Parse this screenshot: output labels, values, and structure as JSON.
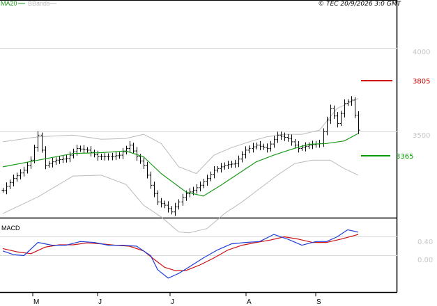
{
  "legend": {
    "ma_label": "MA20",
    "bb_label": "BBands",
    "ma_color": "#1a9a1a",
    "bb_color": "#bbbbbb"
  },
  "copyright": "© TEC 20/9/2026 3:0 GMT",
  "price_axis": {
    "ticks": [
      "4000",
      "3500"
    ]
  },
  "macd_axis": {
    "ticks": [
      "0.40",
      "0.00"
    ]
  },
  "resistance": {
    "label": "3805",
    "value": 3805,
    "color": "#cc0000"
  },
  "support": {
    "label": "3365",
    "value": 3365,
    "color": "#009900"
  },
  "months": [
    "M",
    "J",
    "J",
    "A",
    "S"
  ],
  "macd_panel": {
    "title": "MACD",
    "macd_color": "#1f3fd6",
    "signal_color": "#cc1111"
  },
  "chart_data": [
    {
      "type": "ohlc",
      "y_ticks": [
        3500,
        4000
      ],
      "ylim": [
        2890,
        4330
      ],
      "x_index_range": [
        0,
        101
      ],
      "month_start_index": {
        "M": 10,
        "J1": 28,
        "J2": 49,
        "A": 71,
        "S": 91
      },
      "series": [
        {
          "name": "MA20",
          "index": [
            0,
            10,
            20,
            28,
            35,
            40,
            45,
            52,
            57,
            62,
            67,
            72,
            77,
            82,
            87,
            92,
            97,
            101
          ],
          "values": [
            3290,
            3330,
            3370,
            3375,
            3385,
            3350,
            3250,
            3140,
            3115,
            3180,
            3250,
            3320,
            3360,
            3395,
            3425,
            3430,
            3445,
            3490
          ]
        },
        {
          "name": "BBands upper",
          "index": [
            0,
            10,
            20,
            28,
            35,
            40,
            45,
            50,
            55,
            60,
            65,
            70,
            75,
            80,
            85,
            90,
            95,
            101
          ],
          "values": [
            3440,
            3470,
            3480,
            3455,
            3460,
            3485,
            3430,
            3290,
            3250,
            3360,
            3405,
            3440,
            3470,
            3485,
            3485,
            3510,
            3640,
            3700
          ]
        },
        {
          "name": "BBands lower",
          "index": [
            0,
            10,
            20,
            28,
            35,
            40,
            45,
            50,
            53,
            58,
            63,
            68,
            73,
            78,
            83,
            88,
            93,
            97,
            101
          ],
          "values": [
            3010,
            3110,
            3235,
            3240,
            3185,
            3060,
            2990,
            2900,
            2895,
            2920,
            3010,
            3080,
            3160,
            3240,
            3310,
            3330,
            3330,
            3280,
            3240
          ]
        },
        {
          "name": "Close",
          "index": [
            0,
            3,
            6,
            8,
            10,
            12,
            15,
            18,
            21,
            24,
            27,
            30,
            33,
            36,
            38,
            40,
            42,
            44,
            46,
            48,
            50,
            52,
            54,
            56,
            58,
            60,
            63,
            66,
            69,
            72,
            75,
            78,
            81,
            84,
            87,
            90,
            93,
            95,
            97,
            99,
            101
          ],
          "values": [
            3150,
            3220,
            3270,
            3330,
            3480,
            3300,
            3330,
            3340,
            3400,
            3390,
            3350,
            3350,
            3360,
            3420,
            3350,
            3300,
            3180,
            3080,
            3060,
            3020,
            3080,
            3130,
            3150,
            3180,
            3220,
            3270,
            3300,
            3310,
            3390,
            3420,
            3400,
            3480,
            3460,
            3400,
            3420,
            3430,
            3640,
            3550,
            3670,
            3690,
            3510
          ]
        }
      ]
    },
    {
      "type": "line",
      "title": "MACD",
      "y_ticks": [
        0.0,
        0.4
      ],
      "ylim": [
        -0.55,
        0.65
      ],
      "x_index_range": [
        0,
        101
      ],
      "series": [
        {
          "name": "MACD",
          "index": [
            0,
            3,
            6,
            10,
            14,
            18,
            22,
            26,
            30,
            34,
            38,
            42,
            44,
            47,
            50,
            53,
            57,
            61,
            65,
            69,
            73,
            77,
            81,
            85,
            89,
            92,
            95,
            98,
            101
          ],
          "values": [
            0.1,
            0.02,
            0.0,
            0.28,
            0.22,
            0.22,
            0.3,
            0.28,
            0.22,
            0.22,
            0.2,
            0.0,
            -0.3,
            -0.48,
            -0.38,
            -0.24,
            -0.05,
            0.12,
            0.25,
            0.28,
            0.3,
            0.45,
            0.35,
            0.22,
            0.3,
            0.3,
            0.4,
            0.55,
            0.5
          ]
        },
        {
          "name": "Signal",
          "index": [
            0,
            4,
            8,
            12,
            16,
            20,
            24,
            28,
            32,
            36,
            40,
            43,
            46,
            49,
            52,
            56,
            60,
            64,
            68,
            72,
            76,
            80,
            84,
            88,
            92,
            96,
            101
          ],
          "values": [
            0.15,
            0.08,
            0.04,
            0.18,
            0.23,
            0.23,
            0.27,
            0.25,
            0.22,
            0.2,
            0.1,
            -0.08,
            -0.25,
            -0.32,
            -0.32,
            -0.2,
            -0.05,
            0.12,
            0.22,
            0.28,
            0.33,
            0.4,
            0.35,
            0.28,
            0.28,
            0.35,
            0.45
          ]
        }
      ]
    }
  ]
}
